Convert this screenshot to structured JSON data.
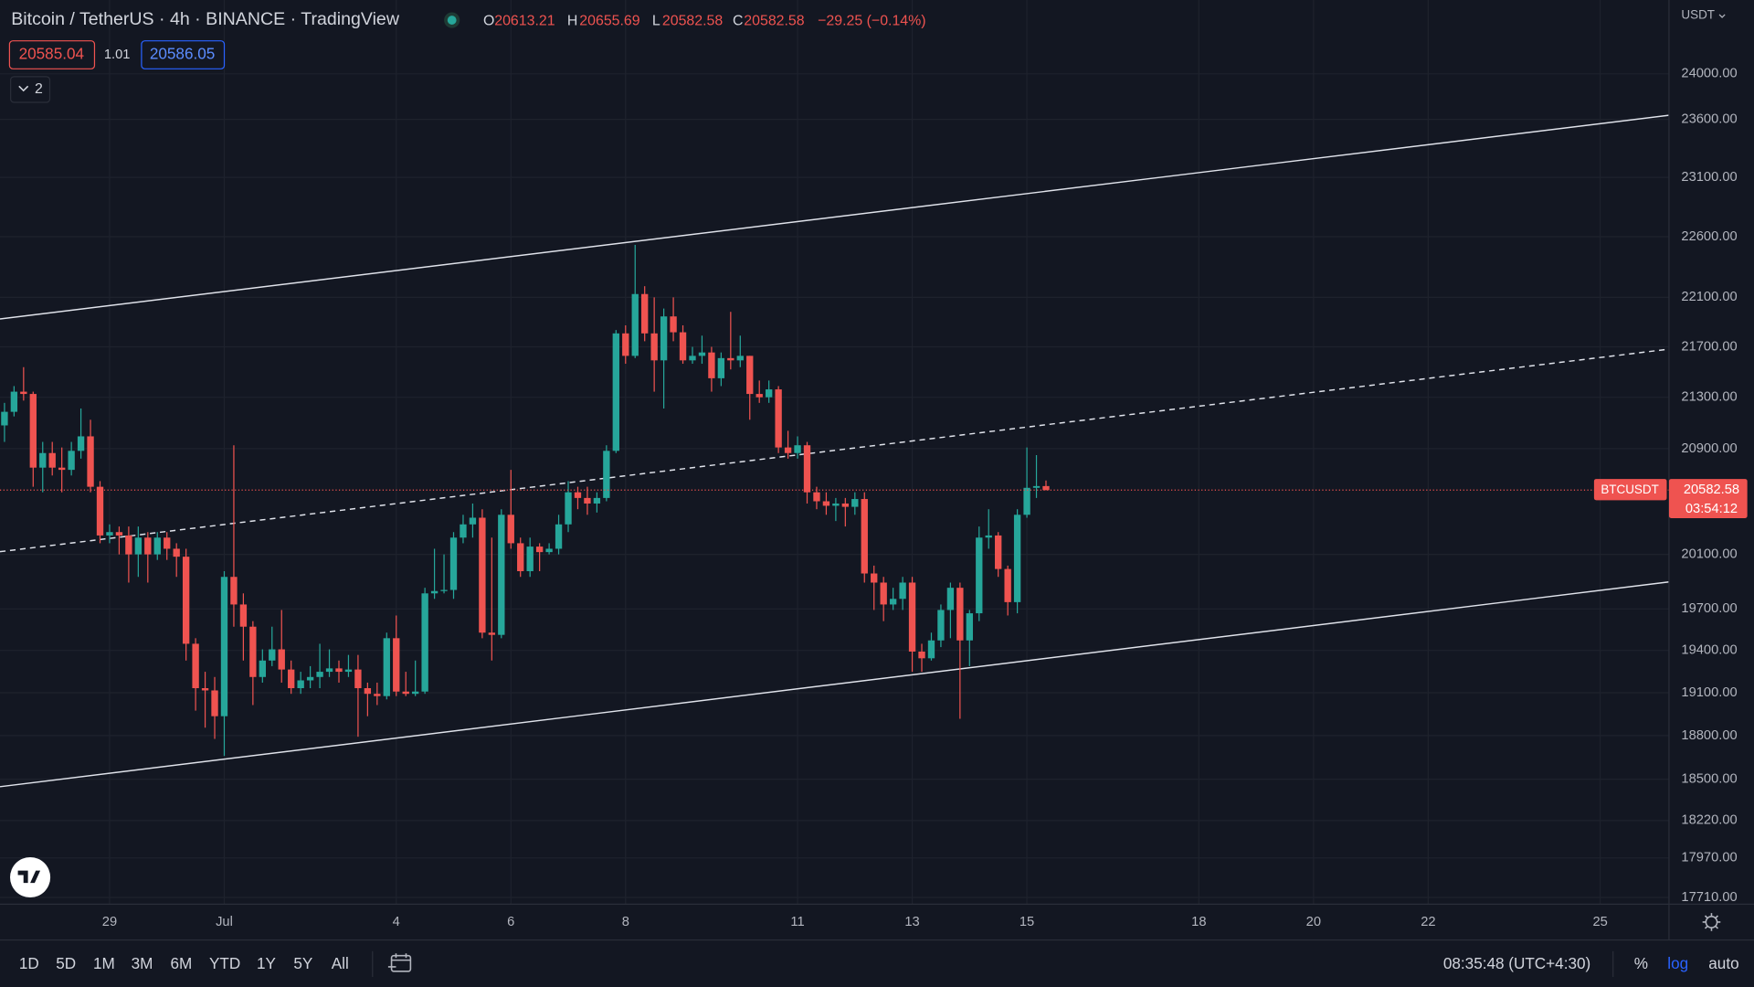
{
  "header": {
    "title": "Bitcoin / TetherUS · 4h · BINANCE · TradingView",
    "ohlc_labels": [
      "O",
      "H",
      "L",
      "C"
    ],
    "change": "−29.25 (−0.14%)"
  },
  "quote": {
    "bid": 20585.04,
    "spread": 1.01,
    "ask": 20586.05
  },
  "indicators": "2",
  "currency": "USDT",
  "price_tag": {
    "symbol": "BTCUSDT",
    "countdown": "03:54:12"
  },
  "timeframes": [
    "1D",
    "5D",
    "1M",
    "3M",
    "6M",
    "YTD",
    "1Y",
    "5Y",
    "All"
  ],
  "clock": "08:35:48 (UTC+4:30)",
  "scale_options": [
    "%",
    "log",
    "auto"
  ],
  "chart_data": {
    "type": "candlestick",
    "log": true,
    "grid": true,
    "up_color": "#26a69a",
    "down_color": "#ef5350",
    "xlim": [
      -0.47,
      174.2
    ],
    "xticks": [
      {
        "value": 11,
        "label": "29"
      },
      {
        "value": 23,
        "label": "Jul"
      },
      {
        "value": 41,
        "label": "4"
      },
      {
        "value": 53,
        "label": "6"
      },
      {
        "value": 65,
        "label": "8"
      },
      {
        "value": 83,
        "label": "11"
      },
      {
        "value": 95,
        "label": "13"
      },
      {
        "value": 107,
        "label": "15"
      },
      {
        "value": 125,
        "label": "18"
      },
      {
        "value": 137,
        "label": "20"
      },
      {
        "value": 149,
        "label": "22"
      },
      {
        "value": 167,
        "label": "25"
      }
    ],
    "ylim": [
      17666,
      24663
    ],
    "yticks": [
      {
        "value": 24000,
        "label": "24000.00"
      },
      {
        "value": 23600,
        "label": "23600.00"
      },
      {
        "value": 23100,
        "label": "23100.00"
      },
      {
        "value": 22600,
        "label": "22600.00"
      },
      {
        "value": 22100,
        "label": "22100.00"
      },
      {
        "value": 21700,
        "label": "21700.00"
      },
      {
        "value": 21300,
        "label": "21300.00"
      },
      {
        "value": 20900,
        "label": "20900.00"
      },
      {
        "value": 20100,
        "label": "20100.00"
      },
      {
        "value": 19700,
        "label": "19700.00"
      },
      {
        "value": 19400,
        "label": "19400.00"
      },
      {
        "value": 19100,
        "label": "19100.00"
      },
      {
        "value": 18800,
        "label": "18800.00"
      },
      {
        "value": 18500,
        "label": "18500.00"
      },
      {
        "value": 18220,
        "label": "18220.00"
      },
      {
        "value": 17970,
        "label": "17970.00"
      },
      {
        "value": 17710,
        "label": "17710.00"
      }
    ],
    "open": [
      21080,
      21186,
      21344,
      21326,
      20754,
      20866,
      20754,
      20737,
      20883,
      20995,
      20608,
      20241,
      20266,
      20241,
      20100,
      20225,
      20100,
      20225,
      20142,
      20083,
      19448,
      19132,
      19116,
      18935,
      19934,
      19732,
      19571,
      19211,
      19328,
      19408,
      19264,
      19132,
      19187,
      19211,
      19248,
      19272,
      19248,
      19264,
      19132,
      19092,
      19076,
      19488,
      19108,
      19092,
      19108,
      19813,
      19830,
      19838,
      20225,
      20324,
      20374,
      19528,
      19512,
      20396,
      20183,
      19976,
      20158,
      20117,
      20142,
      20324,
      20566,
      20523,
      20481,
      20523,
      20883,
      21808,
      21628,
      22127,
      21808,
      21592,
      21945,
      21817,
      21592,
      21628,
      21655,
      21450,
      21610,
      21592,
      21628,
      21326,
      21300,
      21362,
      20909,
      20866,
      20926,
      20566,
      20498,
      20464,
      20481,
      20456,
      20515,
      19959,
      19892,
      19732,
      19773,
      19892,
      19392,
      19344,
      19472,
      19692,
      19854,
      19472,
      19668,
      20225,
      20241,
      19992,
      19749,
      20396,
      20600,
      20613.21
    ],
    "high": [
      21256,
      21388,
      21538,
      21344,
      20952,
      20952,
      20909,
      20952,
      21212,
      21124,
      20651,
      20324,
      20308,
      20308,
      20308,
      20266,
      20266,
      20266,
      20183,
      20142,
      19488,
      19248,
      19211,
      19976,
      20926,
      19813,
      19611,
      19408,
      19571,
      19692,
      19328,
      19248,
      19288,
      19448,
      19408,
      19328,
      19368,
      19368,
      19171,
      19171,
      19528,
      19652,
      19248,
      19328,
      19854,
      20142,
      20100,
      20266,
      20396,
      20481,
      20438,
      20225,
      20438,
      20737,
      20225,
      20225,
      20183,
      20183,
      20396,
      20651,
      20608,
      20608,
      20566,
      20926,
      21835,
      21873,
      22532,
      22191,
      22100,
      22009,
      22100,
      21873,
      21700,
      21790,
      21700,
      21655,
      21982,
      21790,
      21628,
      21432,
      21432,
      21388,
      21038,
      20995,
      20952,
      20608,
      20566,
      20523,
      20523,
      20566,
      20566,
      20017,
      19934,
      19854,
      19934,
      19934,
      19448,
      19528,
      19732,
      19892,
      19892,
      19692,
      20308,
      20438,
      20266,
      20017,
      20438,
      20909,
      20850,
      20655.69
    ],
    "low": [
      20952,
      21150,
      21274,
      20608,
      20566,
      20694,
      20566,
      20694,
      20823,
      20566,
      20183,
      20183,
      20100,
      19892,
      19934,
      19892,
      20059,
      20059,
      19934,
      19328,
      18974,
      18855,
      18777,
      18660,
      19571,
      19328,
      19013,
      19171,
      19288,
      19171,
      19092,
      19092,
      19132,
      19132,
      19211,
      19171,
      19211,
      18792,
      18935,
      19013,
      19053,
      19076,
      19076,
      19076,
      19092,
      19773,
      19813,
      19773,
      20183,
      20225,
      19488,
      19328,
      19488,
      20142,
      19934,
      19934,
      19976,
      20100,
      20100,
      20266,
      20438,
      20396,
      20413,
      20498,
      20866,
      21565,
      21610,
      21745,
      21344,
      21212,
      21745,
      21565,
      21565,
      21565,
      21344,
      21388,
      21520,
      21538,
      21124,
      21256,
      21256,
      20866,
      20823,
      20823,
      20481,
      20438,
      20396,
      20349,
      20308,
      20396,
      19892,
      19692,
      19611,
      19692,
      19692,
      19248,
      19248,
      19328,
      19424,
      19488,
      18917,
      19288,
      19611,
      20142,
      19934,
      19652,
      19668,
      20374,
      20523,
      20582.58
    ],
    "close": [
      21186,
      21344,
      21326,
      20754,
      20866,
      20754,
      20737,
      20883,
      20995,
      20608,
      20241,
      20266,
      20241,
      20100,
      20225,
      20100,
      20225,
      20142,
      20083,
      19448,
      19132,
      19116,
      18935,
      19934,
      19732,
      19571,
      19211,
      19328,
      19408,
      19264,
      19132,
      19187,
      19211,
      19248,
      19272,
      19248,
      19264,
      19132,
      19092,
      19076,
      19488,
      19108,
      19092,
      19108,
      19813,
      19830,
      19838,
      20225,
      20324,
      20374,
      19528,
      19512,
      20396,
      20183,
      19976,
      20158,
      20117,
      20142,
      20324,
      20566,
      20523,
      20481,
      20523,
      20883,
      21808,
      21628,
      22127,
      21808,
      21592,
      21945,
      21817,
      21592,
      21628,
      21655,
      21450,
      21610,
      21592,
      21628,
      21326,
      21300,
      21362,
      20909,
      20866,
      20926,
      20566,
      20498,
      20464,
      20481,
      20456,
      20515,
      19959,
      19892,
      19732,
      19773,
      19892,
      19392,
      19344,
      19472,
      19692,
      19854,
      19472,
      19668,
      20225,
      20241,
      19992,
      19749,
      20396,
      20600,
      20613.21,
      20582.58
    ]
  }
}
